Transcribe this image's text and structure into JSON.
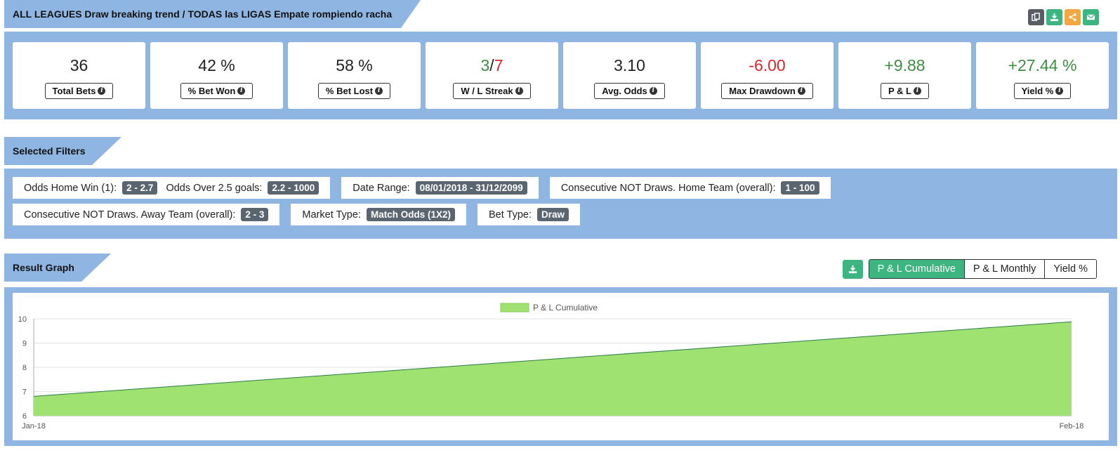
{
  "header": {
    "title": "ALL LEAGUES Draw breaking trend / TODAS las LIGAS Empate rompiendo racha",
    "icons": [
      "copy-icon",
      "download-icon",
      "share-icon",
      "email-icon"
    ]
  },
  "stats": [
    {
      "value": "36",
      "label": "Total Bets",
      "color": "#222222"
    },
    {
      "value": "42 %",
      "label": "% Bet Won",
      "color": "#222222"
    },
    {
      "value": "58 %",
      "label": "% Bet Lost",
      "color": "#222222"
    },
    {
      "value_win": "3",
      "value_sep": "/",
      "value_loss": "7",
      "label": "W / L Streak"
    },
    {
      "value": "3.10",
      "label": "Avg. Odds",
      "color": "#222222"
    },
    {
      "value": "-6.00",
      "label": "Max Drawdown",
      "color": "#d9262c"
    },
    {
      "value": "+9.88",
      "label": "P & L",
      "color": "#3e8e41"
    },
    {
      "value": "+27.44 %",
      "label": "Yield %",
      "color": "#3e8e41"
    }
  ],
  "filters": {
    "title": "Selected Filters",
    "row1": [
      {
        "pairs": [
          {
            "label": "Odds Home Win (1):",
            "value": "2 - 2.7"
          },
          {
            "label": "Odds Over 2.5 goals:",
            "value": "2.2 - 1000"
          }
        ]
      },
      {
        "pairs": [
          {
            "label": "Date Range:",
            "value": "08/01/2018 - 31/12/2099"
          }
        ]
      },
      {
        "pairs": [
          {
            "label": "Consecutive NOT Draws. Home Team (overall):",
            "value": "1 - 100"
          }
        ]
      }
    ],
    "row2": [
      {
        "pairs": [
          {
            "label": "Consecutive NOT Draws. Away Team (overall):",
            "value": "2 - 3"
          }
        ]
      },
      {
        "pairs": [
          {
            "label": "Market Type:",
            "value": "Match Odds (1X2)"
          }
        ]
      },
      {
        "pairs": [
          {
            "label": "Bet Type:",
            "value": "Draw"
          }
        ]
      }
    ]
  },
  "graph": {
    "title": "Result Graph",
    "tabs": [
      "P & L Cumulative",
      "P & L Monthly",
      "Yield %"
    ],
    "active_tab": "P & L Cumulative"
  },
  "chart_data": {
    "type": "area",
    "x": [
      "Jan-18",
      "Feb-18"
    ],
    "series": [
      {
        "name": "P & L Cumulative",
        "values": [
          6.8,
          9.88
        ],
        "color": "#a0e272"
      }
    ],
    "ylim": [
      6,
      10
    ],
    "yticks": [
      6,
      7,
      8,
      9,
      10
    ],
    "legend": "top-center",
    "grid": true
  }
}
